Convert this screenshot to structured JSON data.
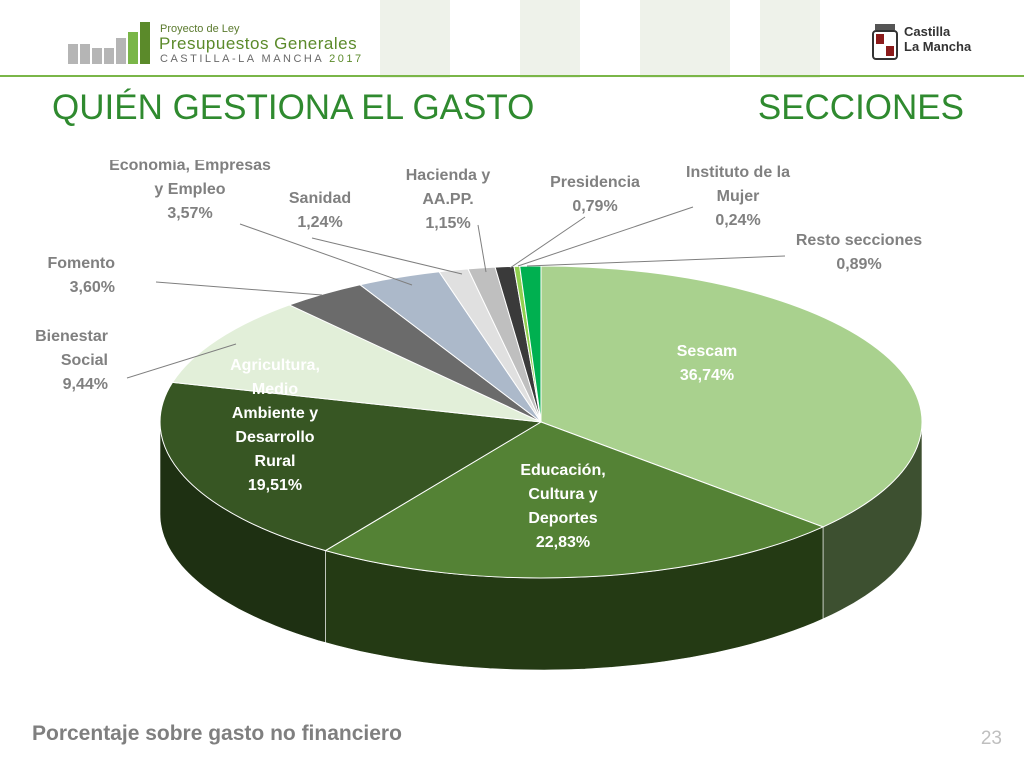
{
  "header": {
    "project_small": "Proyecto de Ley",
    "project_big": "Presupuestos Generales",
    "project_region": "CASTILLA-LA MANCHA",
    "project_year": "2017",
    "cm_line1": "Castilla",
    "cm_line2": "La Mancha"
  },
  "title_left": "QUIÉN GESTIONA EL GASTO",
  "title_right": "SECCIONES",
  "footer": "Porcentaje sobre gasto no financiero",
  "page_number": "23",
  "chart_data": {
    "type": "pie",
    "title": "",
    "series": [
      {
        "label": [
          "Sescam"
        ],
        "value": 36.74,
        "pct": "36,74%",
        "color": "#a9d18e",
        "side": "#3d5030",
        "inside": true
      },
      {
        "label": [
          "Educación,",
          "Cultura y",
          "Deportes"
        ],
        "value": 22.83,
        "pct": "22,83%",
        "color": "#548235",
        "side": "#243a14",
        "inside": true
      },
      {
        "label": [
          "Agricultura,",
          "Medio",
          "Ambiente y",
          "Desarrollo",
          "Rural"
        ],
        "value": 19.51,
        "pct": "19,51%",
        "color": "#375623",
        "side": "#1e3012",
        "inside": true
      },
      {
        "label": [
          "Bienestar",
          "Social"
        ],
        "value": 9.44,
        "pct": "9,44%",
        "color": "#e2efd9",
        "side": "#b0b8a8",
        "inside": false
      },
      {
        "label": [
          "Fomento"
        ],
        "value": 3.6,
        "pct": "3,60%",
        "color": "#6b6b6b",
        "side": "#444444",
        "inside": false
      },
      {
        "label": [
          "Economía, Empresas",
          "y Empleo"
        ],
        "value": 3.57,
        "pct": "3,57%",
        "color": "#acb9ca",
        "side": "#7a8697",
        "inside": false
      },
      {
        "label": [
          "Sanidad"
        ],
        "value": 1.24,
        "pct": "1,24%",
        "color": "#e0e0e0",
        "side": "#aaaaaa",
        "inside": false
      },
      {
        "label": [
          "Hacienda y",
          "AA.PP."
        ],
        "value": 1.15,
        "pct": "1,15%",
        "color": "#bfbfbf",
        "side": "#8a8a8a",
        "inside": false
      },
      {
        "label": [
          "Presidencia"
        ],
        "value": 0.79,
        "pct": "0,79%",
        "color": "#3a3a3a",
        "side": "#1e1e1e",
        "inside": false
      },
      {
        "label": [
          "Instituto de la",
          "Mujer"
        ],
        "value": 0.24,
        "pct": "0,24%",
        "color": "#92d050",
        "side": "#5c8a30",
        "inside": false
      },
      {
        "label": [
          "Resto secciones"
        ],
        "value": 0.89,
        "pct": "0,89%",
        "color": "#00b050",
        "side": "#007a36",
        "inside": false
      }
    ]
  }
}
